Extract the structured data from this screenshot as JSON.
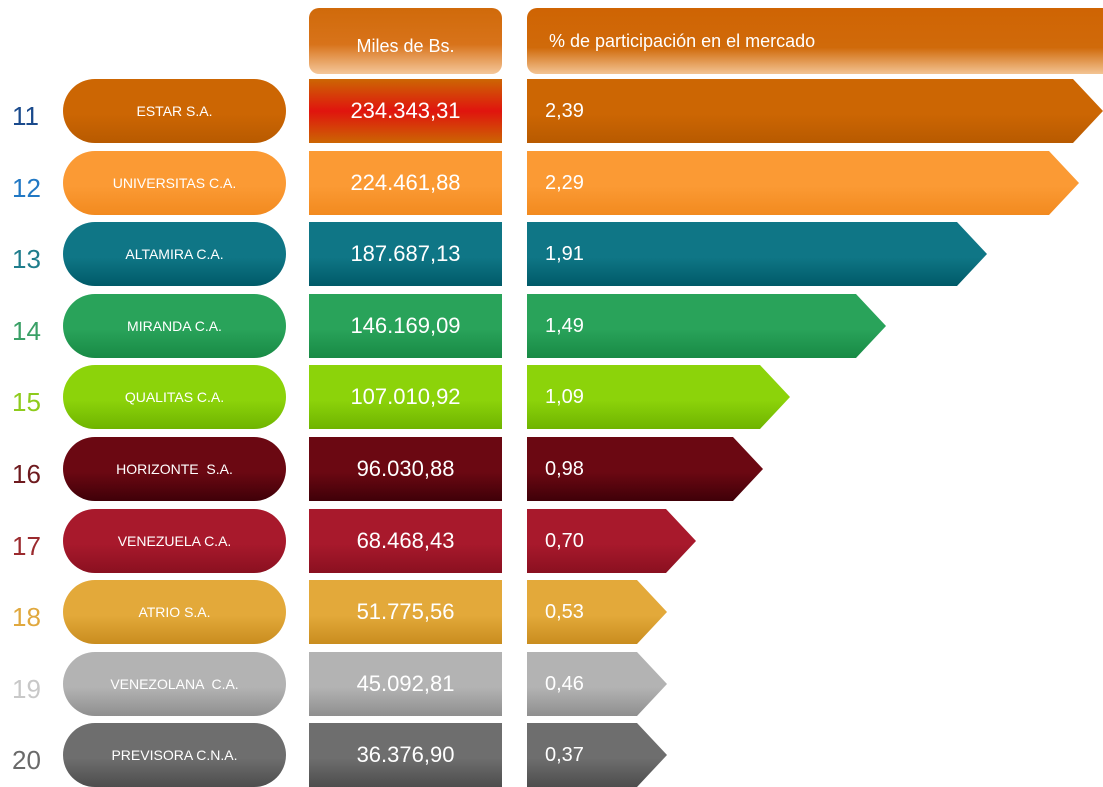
{
  "header": {
    "col_value": "Miles de Bs.",
    "col_pct": "% de participación en el mercado"
  },
  "chart_data": {
    "type": "bar",
    "columns": [
      "Miles de Bs.",
      "% de participación en el mercado"
    ],
    "ranks": [
      "11",
      "12",
      "13",
      "14",
      "15",
      "16",
      "17",
      "18",
      "19",
      "20"
    ],
    "categories": [
      "ESTAR S.A.",
      "UNIVERSITAS C.A.",
      "ALTAMIRA C.A.",
      "MIRANDA C.A.",
      "QUALITAS C.A.",
      "HORIZONTE  S.A.",
      "VENEZUELA C.A.",
      "ATRIO S.A.",
      "VENEZOLANA  C.A.",
      "PREVISORA C.N.A."
    ],
    "values_text": [
      "234.343,31",
      "224.461,88",
      "187.687,13",
      "146.169,09",
      "107.010,92",
      "96.030,88",
      "68.468,43",
      "51.775,56",
      "45.092,81",
      "36.376,90"
    ],
    "values": [
      234343.31,
      224461.88,
      187687.13,
      146169.09,
      107010.92,
      96030.88,
      68468.43,
      51775.56,
      45092.81,
      36376.9
    ],
    "pct_text": [
      "2,39",
      "2,29",
      "1,91",
      "1,49",
      "1,09",
      "0,98",
      "0,70",
      "0,53",
      "0,46",
      "0,37"
    ],
    "pct": [
      2.39,
      2.29,
      1.91,
      1.49,
      1.09,
      0.98,
      0.7,
      0.53,
      0.46,
      0.37
    ]
  },
  "colors": {
    "rows": [
      {
        "base": "#cc6603",
        "dark": "#b85a00",
        "rank": "#1a4a8c"
      },
      {
        "base": "#fb9a34",
        "dark": "#f28a1f",
        "rank": "#2178c4"
      },
      {
        "base": "#0f7686",
        "dark": "#005a68",
        "rank": "#1f7d8c"
      },
      {
        "base": "#29a35a",
        "dark": "#188a45",
        "rank": "#3aa066"
      },
      {
        "base": "#8cd30a",
        "dark": "#6fb400",
        "rank": "#8ecb1c"
      },
      {
        "base": "#6b0812",
        "dark": "#3f0008",
        "rank": "#6e1a1e"
      },
      {
        "base": "#a8192c",
        "dark": "#8a1020",
        "rank": "#9b2a2e"
      },
      {
        "base": "#e3a93a",
        "dark": "#c98d1f",
        "rank": "#e0a83e"
      },
      {
        "base": "#b3b3b3",
        "dark": "#8f8f8f",
        "rank": "#c8c8c8"
      },
      {
        "base": "#6e6e6e",
        "dark": "#4d4d4d",
        "rank": "#6a6a6a"
      }
    ],
    "first_value_accent": "#e0140e"
  }
}
